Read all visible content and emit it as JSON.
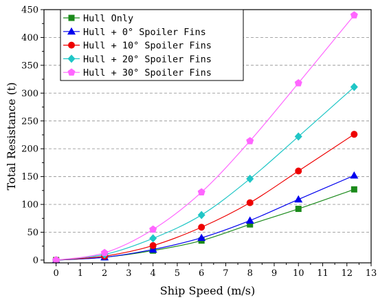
{
  "chart_data": {
    "type": "line",
    "xlabel": "Ship Speed (m/s)",
    "ylabel": "Total Resistance (t)",
    "xlim": [
      -0.5,
      13
    ],
    "ylim": [
      -5,
      450
    ],
    "xticks": [
      0,
      1,
      2,
      3,
      4,
      5,
      6,
      7,
      8,
      9,
      10,
      11,
      12,
      13
    ],
    "yticks": [
      0,
      50,
      100,
      150,
      200,
      250,
      300,
      350,
      400,
      450
    ],
    "grid": "horizontal dashed",
    "legend_position": "top-left",
    "x": [
      0,
      2,
      4,
      6,
      8,
      10,
      12.3
    ],
    "series": [
      {
        "name": "Hull Only",
        "color": "#1a8a1a",
        "marker": "square",
        "values": [
          0,
          5,
          17,
          35,
          64,
          92,
          127
        ]
      },
      {
        "name": "Hull + 0°  Spoiler Fins",
        "color": "#0000ee",
        "marker": "triangle",
        "values": [
          0,
          5,
          19,
          40,
          71,
          109,
          152
        ]
      },
      {
        "name": "Hull + 10°  Spoiler Fins",
        "color": "#ee0000",
        "marker": "circle",
        "values": [
          0,
          7,
          26,
          59,
          103,
          160,
          226
        ]
      },
      {
        "name": "Hull + 20°  Spoiler Fins",
        "color": "#1fc6c6",
        "marker": "diamond",
        "values": [
          0,
          10,
          39,
          81,
          146,
          222,
          311
        ]
      },
      {
        "name": "Hull + 30°  Spoiler Fins",
        "color": "#ff66ff",
        "marker": "pentagon",
        "values": [
          0,
          13,
          55,
          122,
          214,
          318,
          440
        ]
      }
    ]
  }
}
